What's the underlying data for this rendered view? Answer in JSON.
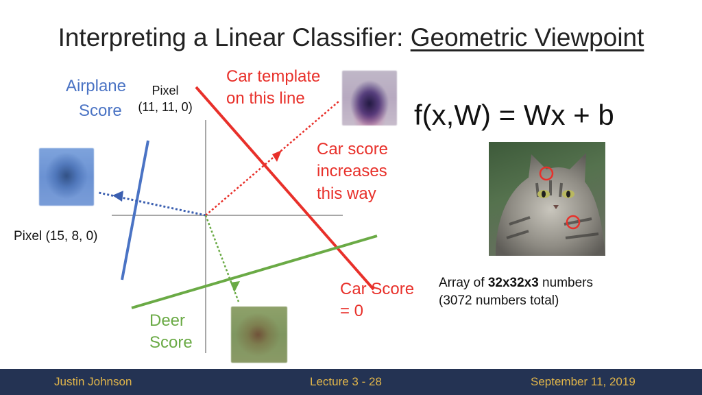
{
  "slide": {
    "title_main": "Interpreting a Linear Classifier: ",
    "title_underlined": "Geometric Viewpoint",
    "formula": "f(x,W) = Wx + b"
  },
  "labels": {
    "airplane_line1": "Airplane",
    "airplane_line2": "Score",
    "pixel_top_line1": "Pixel",
    "pixel_top_line2": "(11, 11, 0)",
    "car_template_line1": "Car template",
    "car_template_line2": "on this line",
    "car_increase_line1": "Car score",
    "car_increase_line2": "increases",
    "car_increase_line3": "this way",
    "pixel_left": "Pixel (15, 8, 0)",
    "car_score_line1": "Car Score",
    "car_score_line2": "= 0",
    "deer_line1": "Deer",
    "deer_line2": "Score",
    "array_prefix": "Array of ",
    "array_bold": "32x32x3",
    "array_suffix": " numbers",
    "array_line2": "(3072 numbers total)"
  },
  "footer": {
    "author": "Justin Johnson",
    "lecture": "Lecture 3 - 28",
    "date": "September 11, 2019"
  },
  "colors": {
    "airplane": "#4a73c4",
    "car": "#e8302a",
    "deer": "#6aaa45",
    "axis": "#8a8a8a",
    "footer_bg": "#243353",
    "footer_text": "#e2b64a"
  },
  "icons": {
    "airplane_template": "airplane-template-image",
    "car_template": "car-template-image",
    "deer_template": "deer-template-image",
    "cat_photo": "cat-photo"
  }
}
